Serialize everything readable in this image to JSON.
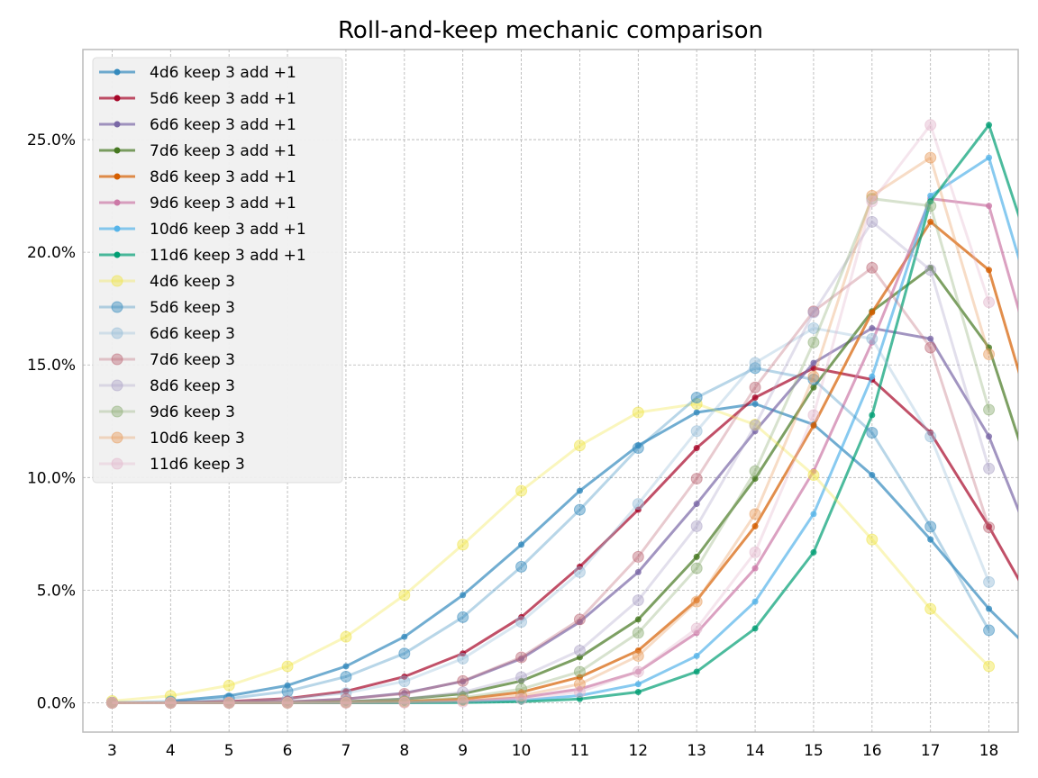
{
  "chart_data": {
    "type": "line",
    "title": "Roll-and-keep mechanic comparison",
    "xlabel": "",
    "ylabel": "",
    "x": [
      3,
      4,
      5,
      6,
      7,
      8,
      9,
      10,
      11,
      12,
      13,
      14,
      15,
      16,
      17,
      18
    ],
    "xticks": [
      "3",
      "4",
      "5",
      "6",
      "7",
      "8",
      "9",
      "10",
      "11",
      "12",
      "13",
      "14",
      "15",
      "16",
      "17",
      "18"
    ],
    "xlim": [
      2.5,
      18.5
    ],
    "ylim": [
      -0.013,
      0.29
    ],
    "yticks": [
      0.0,
      0.05,
      0.1,
      0.15,
      0.2,
      0.25
    ],
    "ytick_labels": [
      "0.0%",
      "5.0%",
      "10.0%",
      "15.0%",
      "20.0%",
      "25.0%"
    ],
    "grid": true,
    "legend_position": "top-left",
    "series": [
      {
        "name": "4d6 keep 3 add +1",
        "color": "#348ABD",
        "style": "line",
        "offset": 1,
        "values": [
          0.0008,
          0.0031,
          0.0077,
          0.0162,
          0.0293,
          0.0478,
          0.0702,
          0.0941,
          0.1142,
          0.1289,
          0.1327,
          0.1235,
          0.1011,
          0.0725,
          0.0417,
          0.0162
        ]
      },
      {
        "name": "5d6 keep 3 add +1",
        "color": "#A60628",
        "style": "line",
        "offset": 1,
        "values": [
          0.0001,
          0.0006,
          0.0019,
          0.0051,
          0.0116,
          0.0219,
          0.038,
          0.0604,
          0.0857,
          0.1131,
          0.1355,
          0.1486,
          0.1435,
          0.1199,
          0.0782,
          0.0322
        ]
      },
      {
        "name": "6d6 keep 3 add +1",
        "color": "#7A68A6",
        "style": "line",
        "offset": 1,
        "values": [
          0.0,
          0.0001,
          0.0004,
          0.0017,
          0.0043,
          0.0095,
          0.0196,
          0.0359,
          0.058,
          0.0883,
          0.1206,
          0.1509,
          0.1663,
          0.1616,
          0.1182,
          0.0536
        ]
      },
      {
        "name": "7d6 keep 3 add +1",
        "color": "#467821",
        "style": "line",
        "offset": 1,
        "values": [
          0.0,
          0.0,
          0.0001,
          0.0005,
          0.0017,
          0.004,
          0.0097,
          0.0202,
          0.037,
          0.0648,
          0.0995,
          0.14,
          0.1738,
          0.1931,
          0.1577,
          0.0779
        ]
      },
      {
        "name": "8d6 keep 3 add +1",
        "color": "#D55E00",
        "style": "line",
        "offset": 1,
        "values": [
          0.0,
          0.0,
          0.0,
          0.0002,
          0.0006,
          0.0017,
          0.0047,
          0.0114,
          0.0232,
          0.0455,
          0.0784,
          0.1231,
          0.1733,
          0.2135,
          0.1921,
          0.104
        ]
      },
      {
        "name": "9d6 keep 3 add +1",
        "color": "#CC79A7",
        "style": "line",
        "offset": 1,
        "values": [
          0.0,
          0.0,
          0.0,
          0.0,
          0.0002,
          0.0007,
          0.0023,
          0.0061,
          0.0138,
          0.031,
          0.0597,
          0.1028,
          0.16,
          0.2238,
          0.2206,
          0.1301
        ]
      },
      {
        "name": "10d6 keep 3 add +1",
        "color": "#56B4E9",
        "style": "line",
        "offset": 1,
        "values": [
          0.0,
          0.0,
          0.0,
          0.0,
          0.0001,
          0.0003,
          0.0011,
          0.0032,
          0.0083,
          0.0208,
          0.0449,
          0.0838,
          0.1448,
          0.2251,
          0.242,
          0.1547
        ]
      },
      {
        "name": "11d6 keep 3 add +1",
        "color": "#009E73",
        "style": "line",
        "offset": 1,
        "values": [
          0.0,
          0.0,
          0.0,
          0.0,
          0.0,
          0.0001,
          0.0005,
          0.0017,
          0.0048,
          0.0138,
          0.033,
          0.0668,
          0.1277,
          0.2226,
          0.2565,
          0.1778
        ]
      },
      {
        "name": "4d6 keep 3",
        "color": "#F0E442",
        "style": "marker",
        "offset": 0,
        "values": [
          0.0008,
          0.0031,
          0.0077,
          0.0162,
          0.0293,
          0.0478,
          0.0702,
          0.0941,
          0.1142,
          0.1289,
          0.1327,
          0.1235,
          0.1011,
          0.0725,
          0.0417,
          0.0162
        ]
      },
      {
        "name": "5d6 keep 3",
        "color": "#348ABD",
        "style": "marker",
        "offset": 0,
        "values": [
          0.0001,
          0.0006,
          0.0019,
          0.0051,
          0.0116,
          0.0219,
          0.038,
          0.0604,
          0.0857,
          0.1131,
          0.1355,
          0.1486,
          0.1435,
          0.1199,
          0.0782,
          0.0322
        ]
      },
      {
        "name": "6d6 keep 3",
        "color": "#92BBD8",
        "style": "marker",
        "offset": 0,
        "values": [
          0.0,
          0.0001,
          0.0004,
          0.0017,
          0.0043,
          0.0095,
          0.0196,
          0.0359,
          0.058,
          0.0883,
          0.1206,
          0.1509,
          0.1663,
          0.1616,
          0.1182,
          0.0536
        ]
      },
      {
        "name": "7d6 keep 3",
        "color": "#BD6875",
        "style": "marker",
        "offset": 0,
        "values": [
          0.0,
          0.0,
          0.0001,
          0.0005,
          0.0017,
          0.004,
          0.0097,
          0.0202,
          0.037,
          0.0648,
          0.0995,
          0.14,
          0.1738,
          0.1931,
          0.1577,
          0.0779
        ]
      },
      {
        "name": "8d6 keep 3",
        "color": "#ADA3C8",
        "style": "marker",
        "offset": 0,
        "values": [
          0.0,
          0.0,
          0.0,
          0.0002,
          0.0006,
          0.0017,
          0.0047,
          0.0114,
          0.0232,
          0.0455,
          0.0784,
          0.1231,
          0.1733,
          0.2135,
          0.1921,
          0.104
        ]
      },
      {
        "name": "9d6 keep 3",
        "color": "#8CAD73",
        "style": "marker",
        "offset": 0,
        "values": [
          0.0,
          0.0,
          0.0,
          0.0,
          0.0002,
          0.0007,
          0.0023,
          0.0061,
          0.0138,
          0.031,
          0.0597,
          0.1028,
          0.16,
          0.2238,
          0.2206,
          0.1301
        ]
      },
      {
        "name": "10d6 keep 3",
        "color": "#E89B5C",
        "style": "marker",
        "offset": 0,
        "values": [
          0.0,
          0.0,
          0.0,
          0.0,
          0.0001,
          0.0003,
          0.0011,
          0.0032,
          0.0083,
          0.0208,
          0.0449,
          0.0838,
          0.1448,
          0.2251,
          0.242,
          0.1547
        ]
      },
      {
        "name": "11d6 keep 3",
        "color": "#E3B5CC",
        "style": "marker",
        "offset": 0,
        "values": [
          0.0,
          0.0,
          0.0,
          0.0,
          0.0,
          0.0001,
          0.0005,
          0.0017,
          0.0048,
          0.0138,
          0.033,
          0.0668,
          0.1277,
          0.2226,
          0.2565,
          0.1778
        ]
      }
    ]
  }
}
